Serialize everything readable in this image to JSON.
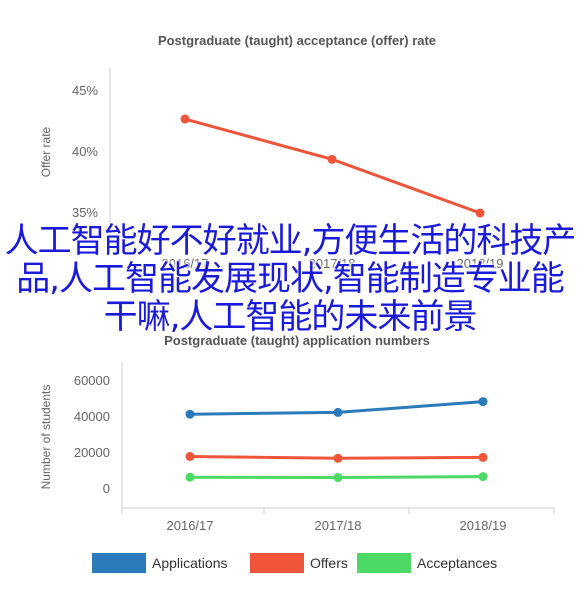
{
  "chart_data": [
    {
      "type": "line",
      "title": "Postgraduate (taught) acceptance (offer) rate",
      "ylabel": "Offer rate",
      "categories": [
        "2016/17",
        "2017/18",
        "2018/19"
      ],
      "ylim": [
        35,
        45
      ],
      "yticks": [
        "35%",
        "40%",
        "45%"
      ],
      "grid": false,
      "series": [
        {
          "values": [
            42.7,
            39.4,
            35.0
          ],
          "color": "#f0553a"
        }
      ]
    },
    {
      "type": "line",
      "title": "Postgraduate (taught) application numbers",
      "ylabel": "Number of students",
      "categories": [
        "2016/17",
        "2017/18",
        "2018/19"
      ],
      "ylim": [
        0,
        70000
      ],
      "yticks": [
        "0",
        "20000",
        "40000",
        "60000"
      ],
      "grid": false,
      "legend_position": "bottom",
      "series": [
        {
          "name": "Applications",
          "values": [
            41000,
            42000,
            48000
          ],
          "color": "#2b7bba"
        },
        {
          "name": "Offers",
          "values": [
            17500,
            16500,
            17000
          ],
          "color": "#f0553a"
        },
        {
          "name": "Acceptances",
          "values": [
            6000,
            5800,
            6300
          ],
          "color": "#4cd964"
        }
      ]
    }
  ],
  "overlay_text": "人工智能好不好就业,方便生活的科技产品,人工智能发展现状,智能制造专业能干嘛,人工智能的未来前景"
}
